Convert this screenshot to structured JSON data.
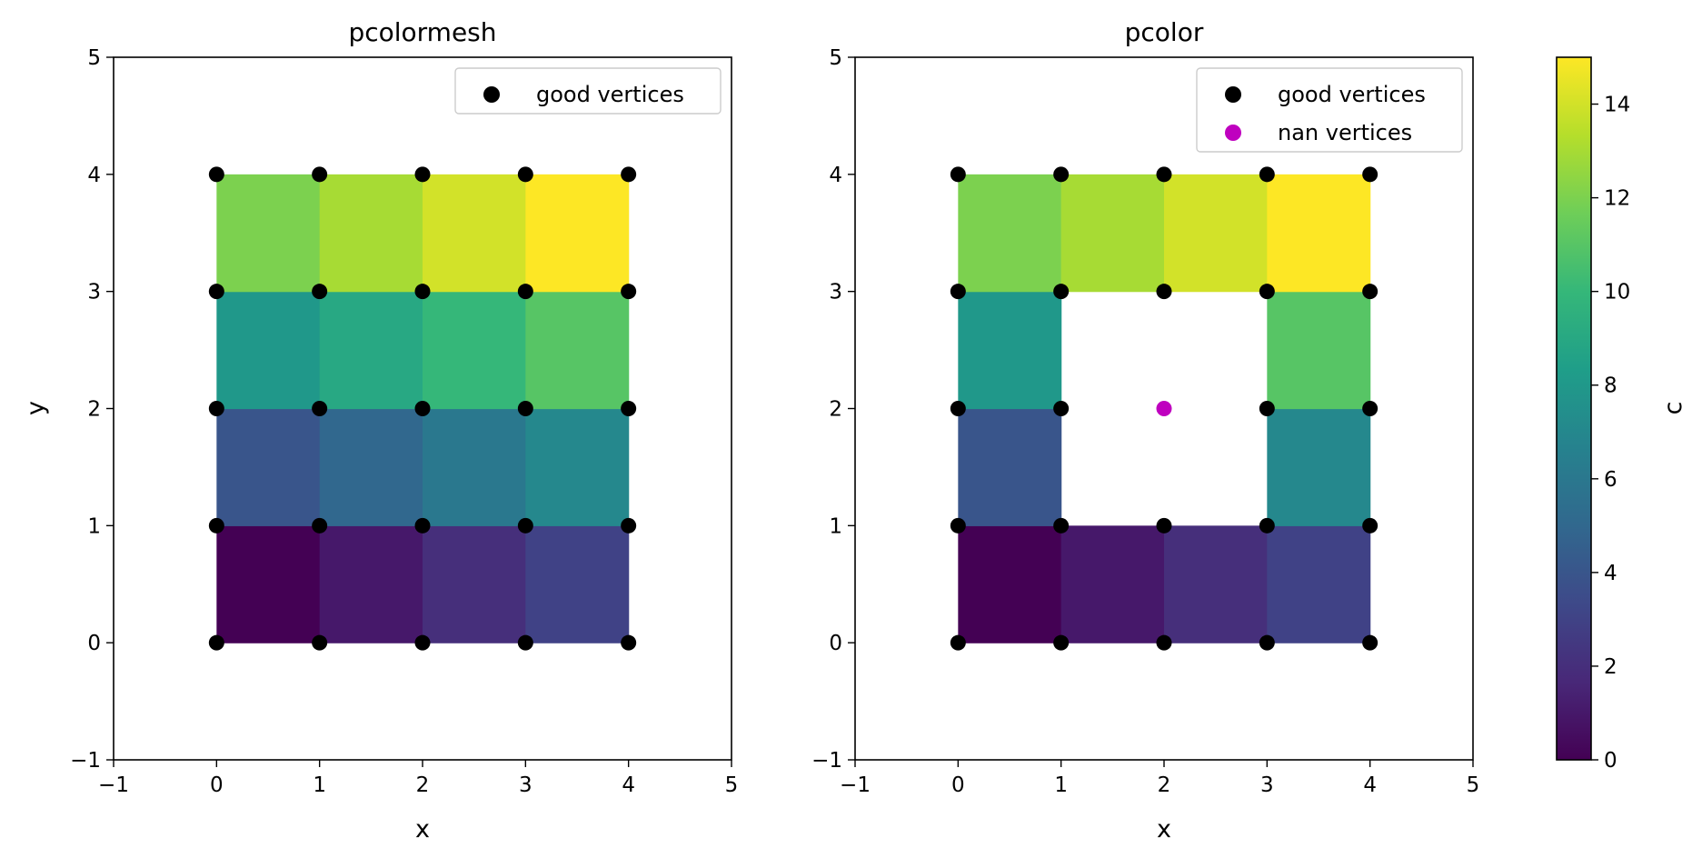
{
  "chart_data": [
    {
      "type": "heatmap",
      "title": "pcolormesh",
      "xlabel": "x",
      "ylabel": "y",
      "xlim": [
        -1,
        5
      ],
      "ylim": [
        -1,
        5
      ],
      "xticks": [
        "−1",
        "0",
        "1",
        "2",
        "3",
        "4",
        "5"
      ],
      "yticks": [
        "−1",
        "0",
        "1",
        "2",
        "3",
        "4",
        "5"
      ],
      "cells": [
        [
          0,
          1,
          2,
          3
        ],
        [
          4,
          5,
          6,
          7
        ],
        [
          8,
          9,
          10,
          11
        ],
        [
          12,
          13,
          14,
          15
        ]
      ],
      "good_vertices": [
        [
          0,
          0
        ],
        [
          1,
          0
        ],
        [
          2,
          0
        ],
        [
          3,
          0
        ],
        [
          4,
          0
        ],
        [
          0,
          1
        ],
        [
          1,
          1
        ],
        [
          2,
          1
        ],
        [
          3,
          1
        ],
        [
          4,
          1
        ],
        [
          0,
          2
        ],
        [
          1,
          2
        ],
        [
          2,
          2
        ],
        [
          3,
          2
        ],
        [
          4,
          2
        ],
        [
          0,
          3
        ],
        [
          1,
          3
        ],
        [
          2,
          3
        ],
        [
          3,
          3
        ],
        [
          4,
          3
        ],
        [
          0,
          4
        ],
        [
          1,
          4
        ],
        [
          2,
          4
        ],
        [
          3,
          4
        ],
        [
          4,
          4
        ]
      ],
      "nan_vertices": [],
      "legend": [
        {
          "label": "good vertices",
          "color": "#000000"
        }
      ],
      "legend_position": "top-right"
    },
    {
      "type": "heatmap",
      "title": "pcolor",
      "xlabel": "x",
      "ylabel": "",
      "xlim": [
        -1,
        5
      ],
      "ylim": [
        -1,
        5
      ],
      "xticks": [
        "−1",
        "0",
        "1",
        "2",
        "3",
        "4",
        "5"
      ],
      "yticks": [
        "−1",
        "0",
        "1",
        "2",
        "3",
        "4",
        "5"
      ],
      "cells": [
        [
          0,
          1,
          2,
          3
        ],
        [
          4,
          null,
          null,
          7
        ],
        [
          8,
          null,
          null,
          11
        ],
        [
          12,
          13,
          14,
          15
        ]
      ],
      "good_vertices": [
        [
          0,
          0
        ],
        [
          1,
          0
        ],
        [
          2,
          0
        ],
        [
          3,
          0
        ],
        [
          4,
          0
        ],
        [
          0,
          1
        ],
        [
          1,
          1
        ],
        [
          2,
          1
        ],
        [
          3,
          1
        ],
        [
          4,
          1
        ],
        [
          0,
          2
        ],
        [
          1,
          2
        ],
        [
          3,
          2
        ],
        [
          4,
          2
        ],
        [
          0,
          3
        ],
        [
          1,
          3
        ],
        [
          2,
          3
        ],
        [
          3,
          3
        ],
        [
          4,
          3
        ],
        [
          0,
          4
        ],
        [
          1,
          4
        ],
        [
          2,
          4
        ],
        [
          3,
          4
        ],
        [
          4,
          4
        ]
      ],
      "nan_vertices": [
        [
          2,
          2
        ]
      ],
      "legend": [
        {
          "label": "good vertices",
          "color": "#000000"
        },
        {
          "label": "nan vertices",
          "color": "#bf00bf"
        }
      ],
      "legend_position": "top-right"
    }
  ],
  "colorbar": {
    "label": "c",
    "range": [
      0,
      15
    ],
    "ticks": [
      "0",
      "2",
      "4",
      "6",
      "8",
      "10",
      "12",
      "14"
    ],
    "colormap": "viridis",
    "stops": [
      "#440154",
      "#482878",
      "#3e4989",
      "#31688e",
      "#26828e",
      "#1f9e89",
      "#35b779",
      "#6ece58",
      "#b5de2b",
      "#fde725"
    ]
  }
}
